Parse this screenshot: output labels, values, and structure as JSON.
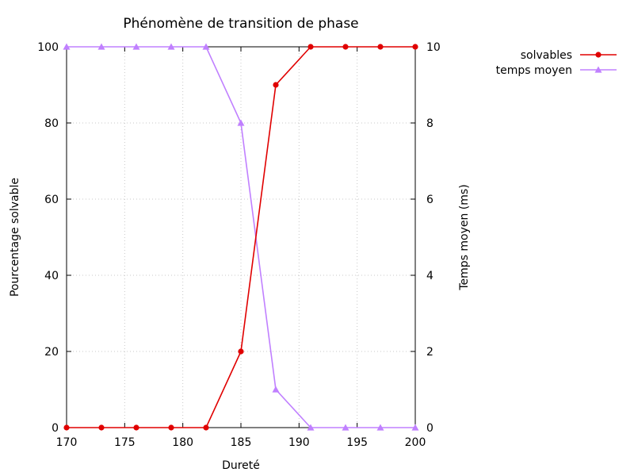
{
  "chart_data": {
    "type": "line",
    "title": "Phénomène de transition de phase",
    "xlabel": "Dureté",
    "ylabel": "Pourcentage solvable",
    "y2label": "Temps moyen (ms)",
    "xlim": [
      170,
      200
    ],
    "ylim": [
      0,
      100
    ],
    "y2lim": [
      0,
      10
    ],
    "xticks": [
      170,
      175,
      180,
      185,
      190,
      195,
      200
    ],
    "yticks": [
      0,
      20,
      40,
      60,
      80,
      100
    ],
    "y2ticks": [
      0,
      2,
      4,
      6,
      8,
      10
    ],
    "grid": true,
    "legend": "top-right-outside",
    "x": [
      170,
      173,
      176,
      179,
      182,
      185,
      188,
      191,
      194,
      197,
      200
    ],
    "series": [
      {
        "name": "solvables",
        "axis": "left",
        "color": "#e00000",
        "marker": "circle",
        "values": [
          0,
          0,
          0,
          0,
          0,
          20,
          90,
          100,
          100,
          100,
          100
        ]
      },
      {
        "name": "temps moyen",
        "axis": "right",
        "color": "#c080ff",
        "marker": "triangle",
        "values": [
          10,
          10,
          10,
          10,
          10,
          8,
          1,
          0,
          0,
          0,
          0
        ]
      }
    ]
  }
}
